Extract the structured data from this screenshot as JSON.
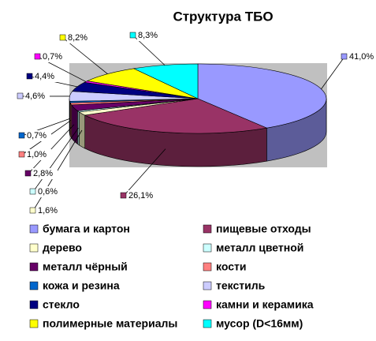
{
  "chart_data": {
    "type": "pie3d",
    "title": "Структура ТБО",
    "categories": [
      "бумага и картон",
      "пищевые отходы",
      "дерево",
      "металл цветной",
      "металл чёрный",
      "кости",
      "кожа и резина",
      "текстиль",
      "стекло",
      "камни и керамика",
      "полимерные материалы",
      "мусор (D<16мм)"
    ],
    "values": [
      41.0,
      26.1,
      1.6,
      0.6,
      2.8,
      1.0,
      0.7,
      4.6,
      4.4,
      0.7,
      8.2,
      8.3
    ],
    "value_labels": [
      "41,0%",
      "26,1%",
      "1,6%",
      "0,6%",
      "2,8%",
      "1,0%",
      "0,7%",
      "4,6%",
      "4,4%",
      "0,7%",
      "8,2%",
      "8,3%"
    ],
    "colors": [
      "#9999ff",
      "#993366",
      "#ffffcc",
      "#ccffff",
      "#660066",
      "#ff8080",
      "#0066cc",
      "#ccccff",
      "#000080",
      "#ff00ff",
      "#ffff00",
      "#00ffff"
    ]
  }
}
